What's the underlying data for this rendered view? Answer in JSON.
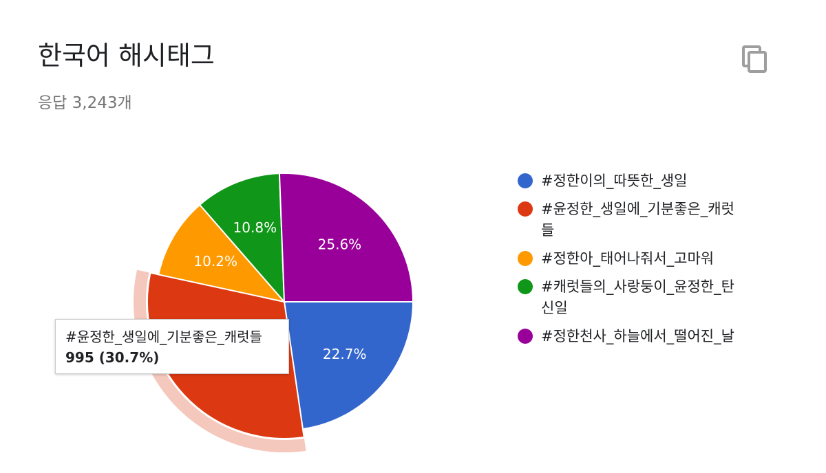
{
  "header": {
    "title": "한국어 해시태그",
    "response_count": "응답 3,243개",
    "copy_icon": "copy-icon"
  },
  "chart_data": {
    "type": "pie",
    "slices": [
      {
        "label": "#정한이의_따뜻한_생일",
        "percent": 22.7,
        "percent_label": "22.7%",
        "color": "#3366cc"
      },
      {
        "label": "#윤정한_생일에_기분좋은_캐럿들",
        "percent": 30.7,
        "percent_label": "",
        "color": "#dc3912",
        "value": 995,
        "highlighted": true
      },
      {
        "label": "#정한아_태어나줘서_고마워",
        "percent": 10.2,
        "percent_label": "10.2%",
        "color": "#ff9900"
      },
      {
        "label": "#캐럿들의_사랑둥이_윤정한_탄신일",
        "percent": 10.8,
        "percent_label": "10.8%",
        "color": "#109618"
      },
      {
        "label": "#정한천사_하늘에서_떨어진_날",
        "percent": 25.6,
        "percent_label": "25.6%",
        "color": "#990099"
      }
    ],
    "legend_position": "right"
  },
  "tooltip": {
    "label": "#윤정한_생일에_기분좋은_캐럿들",
    "value": "995 (30.7%)"
  }
}
